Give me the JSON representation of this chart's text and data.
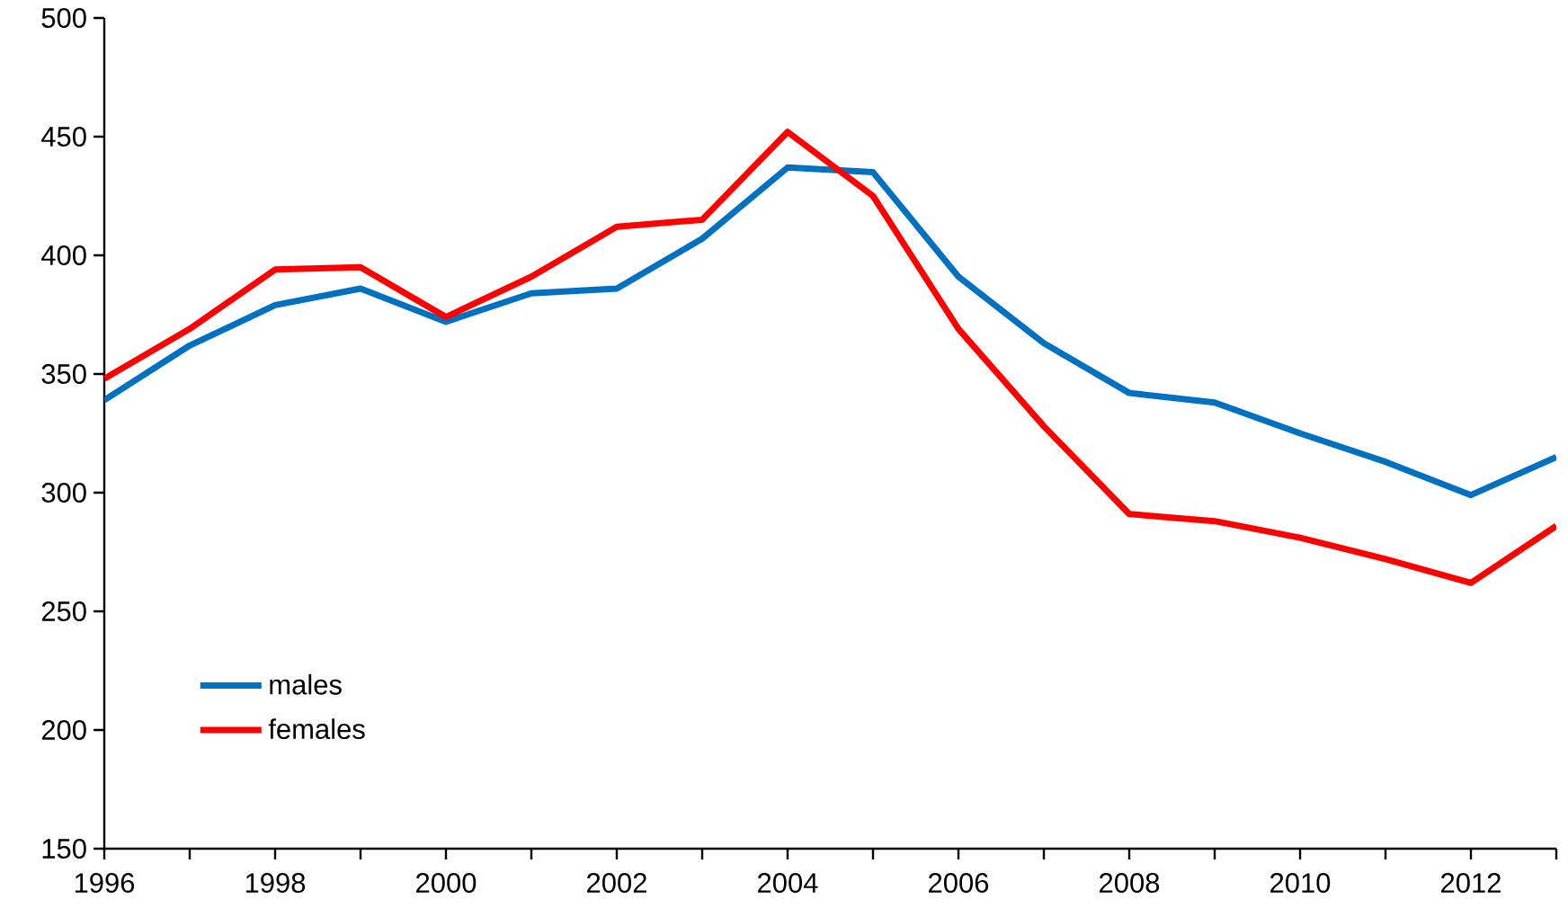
{
  "chart_data": {
    "type": "line",
    "x": [
      1996,
      1997,
      1998,
      1999,
      2000,
      2001,
      2002,
      2003,
      2004,
      2005,
      2006,
      2007,
      2008,
      2009,
      2010,
      2011,
      2012,
      2013
    ],
    "series": [
      {
        "name": "males",
        "color": "#0070c0",
        "values": [
          339,
          362,
          379,
          386,
          372,
          384,
          386,
          407,
          437,
          435,
          391,
          363,
          342,
          338,
          325,
          313,
          299,
          315
        ]
      },
      {
        "name": "females",
        "color": "#ff0000",
        "values": [
          348,
          369,
          394,
          395,
          374,
          391,
          412,
          415,
          452,
          425,
          369,
          328,
          291,
          288,
          281,
          272,
          262,
          286
        ]
      }
    ],
    "xlim": [
      1996,
      2013
    ],
    "xticks": [
      1996,
      {
        "value": 1997,
        "label": null
      },
      1998,
      {
        "value": 1999,
        "label": null
      },
      2000,
      {
        "value": 2001,
        "label": null
      },
      2002,
      {
        "value": 2003,
        "label": null
      },
      2004,
      {
        "value": 2005,
        "label": null
      },
      2006,
      {
        "value": 2007,
        "label": null
      },
      2008,
      {
        "value": 2009,
        "label": null
      },
      2010,
      {
        "value": 2011,
        "label": null
      },
      2012,
      {
        "value": 2013,
        "label": null
      }
    ],
    "ylim": [
      150,
      500
    ],
    "yticks": [
      150,
      200,
      250,
      300,
      350,
      400,
      450,
      500
    ],
    "legend": "bottom left",
    "marker": "none",
    "line_style": "solid",
    "grid": false
  }
}
